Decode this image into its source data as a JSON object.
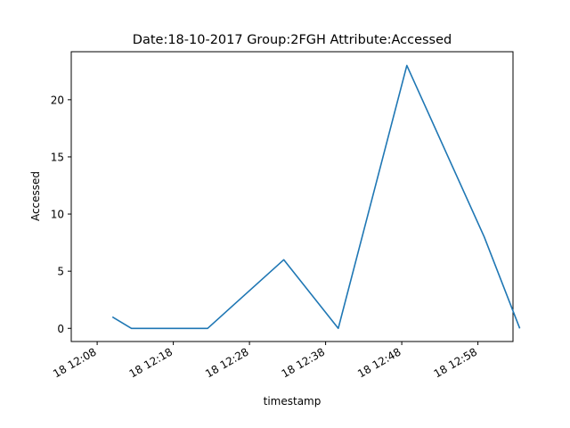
{
  "chart_data": {
    "type": "line",
    "title": "Date:18-10-2017  Group:2FGH Attribute:Accessed",
    "xlabel": "timestamp",
    "ylabel": "Accessed",
    "x_ticks": [
      "18 12:08",
      "18 12:18",
      "18 12:28",
      "18 12:38",
      "18 12:48",
      "18 12:58"
    ],
    "y_ticks": [
      "0",
      "5",
      "10",
      "15",
      "20"
    ],
    "x_range": [
      "12:06:00",
      "12:08:00"
    ],
    "ylim": [
      -1.15,
      24.2
    ],
    "grid": false,
    "series": [
      {
        "color": "#1f77b4",
        "x": [
          "12:10:00",
          "12:12:30",
          "12:22:30",
          "12:32:30",
          "12:39:40",
          "12:48:40",
          "12:58:50",
          "13:03:30"
        ],
        "y": [
          1,
          0,
          0,
          6,
          0,
          23,
          8,
          0
        ]
      }
    ]
  }
}
